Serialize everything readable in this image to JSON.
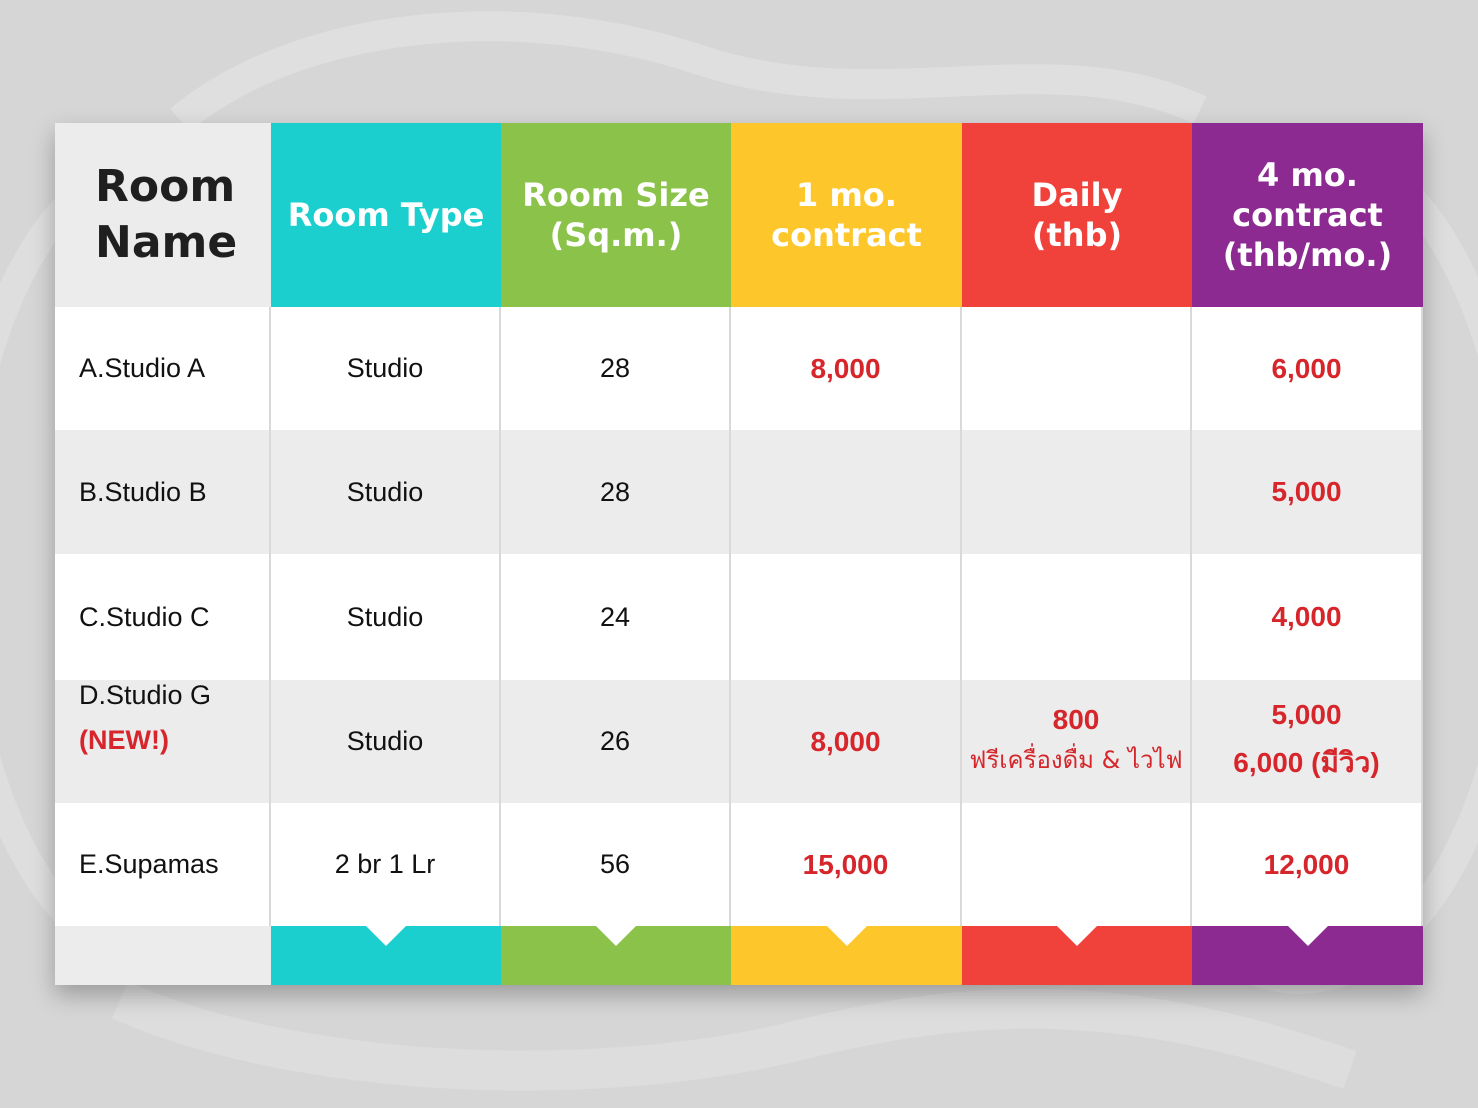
{
  "header": {
    "room_name": [
      "Room",
      "Name"
    ],
    "room_type": [
      "Room Type"
    ],
    "room_size": [
      "Room Size",
      "(Sq.m.)"
    ],
    "one_month": [
      "1 mo.",
      "contract"
    ],
    "daily": [
      "Daily",
      "(thb)"
    ],
    "four_month": [
      "4 mo.",
      "contract",
      "(thb/mo.)"
    ]
  },
  "rows": [
    {
      "name": "A.Studio A",
      "type": "Studio",
      "size": "28",
      "one_month": "8,000",
      "daily": "",
      "daily_note": "",
      "four_month": "6,000",
      "four_month_extra": ""
    },
    {
      "name": "B.Studio B",
      "type": "Studio",
      "size": "28",
      "one_month": "",
      "daily": "",
      "daily_note": "",
      "four_month": "5,000",
      "four_month_extra": ""
    },
    {
      "name": "C.Studio C",
      "type": "Studio",
      "size": "24",
      "one_month": "",
      "daily": "",
      "daily_note": "",
      "four_month": "4,000",
      "four_month_extra": ""
    },
    {
      "name": "D.Studio G",
      "tag": "(NEW!)",
      "type": "Studio",
      "size": "26",
      "one_month": "8,000",
      "daily": "800",
      "daily_note": "ฟรีเครื่องดื่ม & ไวไฟ",
      "four_month": "5,000",
      "four_month_extra": "6,000 (มีวิว)"
    },
    {
      "name": "E.Supamas",
      "type": "2 br 1 Lr",
      "size": "56",
      "one_month": "15,000",
      "daily": "",
      "daily_note": "",
      "four_month": "12,000",
      "four_month_extra": ""
    }
  ],
  "colors": {
    "teal": "#1ccfcf",
    "green": "#8bc34a",
    "yellow": "#fdc72c",
    "red": "#f0413a",
    "purple": "#8d2a91",
    "price_text": "#d6262b"
  }
}
